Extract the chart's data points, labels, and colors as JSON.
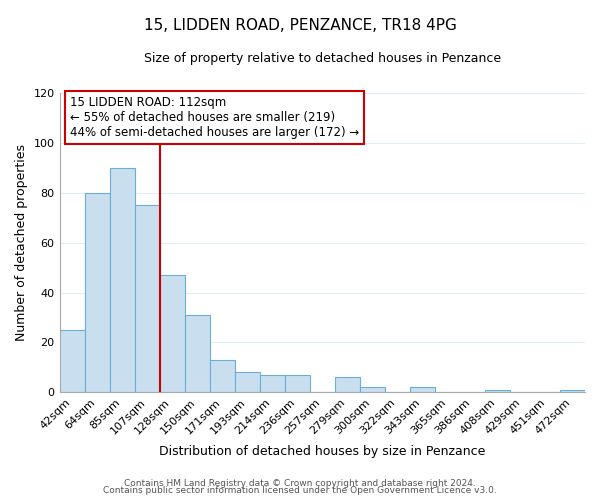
{
  "title": "15, LIDDEN ROAD, PENZANCE, TR18 4PG",
  "subtitle": "Size of property relative to detached houses in Penzance",
  "xlabel": "Distribution of detached houses by size in Penzance",
  "ylabel": "Number of detached properties",
  "bar_labels": [
    "42sqm",
    "64sqm",
    "85sqm",
    "107sqm",
    "128sqm",
    "150sqm",
    "171sqm",
    "193sqm",
    "214sqm",
    "236sqm",
    "257sqm",
    "279sqm",
    "300sqm",
    "322sqm",
    "343sqm",
    "365sqm",
    "386sqm",
    "408sqm",
    "429sqm",
    "451sqm",
    "472sqm"
  ],
  "bar_heights": [
    25,
    80,
    90,
    75,
    47,
    31,
    13,
    8,
    7,
    7,
    0,
    6,
    2,
    0,
    2,
    0,
    0,
    1,
    0,
    0,
    1
  ],
  "bar_color": "#c9dff0",
  "bar_edge_color": "#6aaed6",
  "vline_color": "#cc0000",
  "annotation_title": "15 LIDDEN ROAD: 112sqm",
  "annotation_line1": "← 55% of detached houses are smaller (219)",
  "annotation_line2": "44% of semi-detached houses are larger (172) →",
  "annotation_box_color": "#ffffff",
  "annotation_border_color": "#cc0000",
  "ylim": [
    0,
    120
  ],
  "yticks": [
    0,
    20,
    40,
    60,
    80,
    100,
    120
  ],
  "footer_line1": "Contains HM Land Registry data © Crown copyright and database right 2024.",
  "footer_line2": "Contains public sector information licensed under the Open Government Licence v3.0.",
  "background_color": "#ffffff",
  "grid_color": "#ddeef7"
}
